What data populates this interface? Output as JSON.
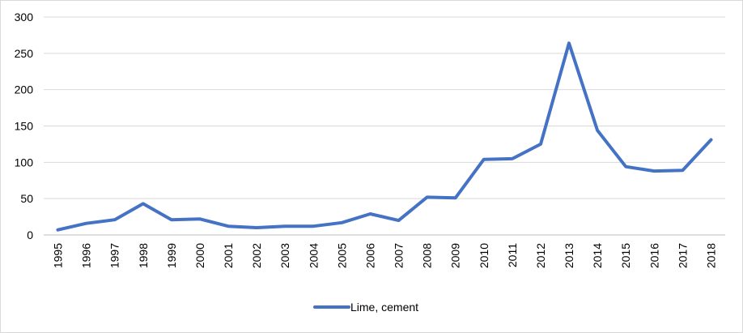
{
  "chart_data": {
    "type": "line",
    "title": "",
    "xlabel": "",
    "ylabel": "",
    "ylim": [
      0,
      300
    ],
    "yticks": [
      0,
      50,
      100,
      150,
      200,
      250,
      300
    ],
    "grid": "horizontal",
    "legend_position": "bottom",
    "x": [
      "1995",
      "1996",
      "1997",
      "1998",
      "1999",
      "2000",
      "2001",
      "2002",
      "2003",
      "2004",
      "2005",
      "2006",
      "2007",
      "2008",
      "2009",
      "2010",
      "2011",
      "2012",
      "2013",
      "2014",
      "2015",
      "2016",
      "2017",
      "2018"
    ],
    "series": [
      {
        "name": "Lime, cement",
        "color": "#4472c4",
        "values": [
          7,
          16,
          21,
          43,
          21,
          22,
          12,
          10,
          12,
          12,
          17,
          29,
          20,
          52,
          51,
          104,
          105,
          125,
          264,
          144,
          94,
          88,
          89,
          131
        ]
      }
    ]
  }
}
